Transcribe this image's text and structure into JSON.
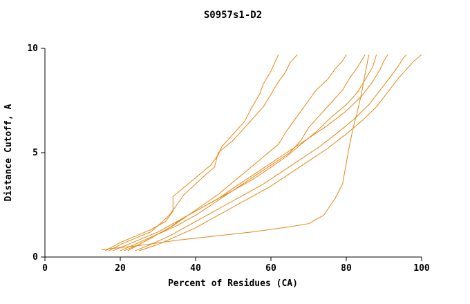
{
  "chart_data": {
    "type": "line",
    "title": "S0957s1-D2",
    "xlabel": "Percent of Residues (CA)",
    "ylabel": "Distance Cutoff, A",
    "xlim": [
      0,
      100
    ],
    "ylim": [
      0,
      10
    ],
    "xticks": [
      0,
      20,
      40,
      60,
      80,
      100
    ],
    "yticks": [
      0,
      5,
      10
    ],
    "grid": false,
    "legend": "none",
    "line_color": "#e68613",
    "axis_color": "#000000",
    "series": [
      {
        "points": [
          [
            16,
            0.3
          ],
          [
            18,
            0.5
          ],
          [
            20,
            0.7
          ],
          [
            24,
            1.0
          ],
          [
            28,
            1.3
          ],
          [
            32,
            1.7
          ],
          [
            34,
            2.2
          ],
          [
            34,
            2.9
          ],
          [
            36,
            3.2
          ],
          [
            40,
            3.8
          ],
          [
            44,
            4.4
          ],
          [
            46,
            4.9
          ],
          [
            47,
            5.3
          ],
          [
            50,
            5.9
          ],
          [
            53,
            6.5
          ],
          [
            55,
            7.2
          ],
          [
            57,
            7.8
          ],
          [
            58,
            8.3
          ],
          [
            60,
            8.9
          ],
          [
            61,
            9.3
          ],
          [
            62,
            9.7
          ]
        ]
      },
      {
        "points": [
          [
            17,
            0.3
          ],
          [
            20,
            0.6
          ],
          [
            24,
            0.9
          ],
          [
            28,
            1.2
          ],
          [
            30,
            1.5
          ],
          [
            33,
            2.0
          ],
          [
            35,
            2.5
          ],
          [
            37,
            3.0
          ],
          [
            40,
            3.5
          ],
          [
            43,
            4.0
          ],
          [
            45,
            4.3
          ],
          [
            46,
            5.0
          ],
          [
            48,
            5.3
          ],
          [
            50,
            5.6
          ],
          [
            52,
            6.0
          ],
          [
            55,
            6.6
          ],
          [
            58,
            7.2
          ],
          [
            60,
            7.8
          ],
          [
            62,
            8.4
          ],
          [
            64,
            8.9
          ],
          [
            65,
            9.3
          ],
          [
            67,
            9.7
          ]
        ]
      },
      {
        "points": [
          [
            18,
            0.3
          ],
          [
            22,
            0.6
          ],
          [
            26,
            0.9
          ],
          [
            30,
            1.2
          ],
          [
            34,
            1.6
          ],
          [
            38,
            2.0
          ],
          [
            42,
            2.5
          ],
          [
            46,
            3.0
          ],
          [
            50,
            3.6
          ],
          [
            54,
            4.2
          ],
          [
            58,
            4.8
          ],
          [
            62,
            5.4
          ],
          [
            64,
            6.0
          ],
          [
            66,
            6.5
          ],
          [
            68,
            7.0
          ],
          [
            70,
            7.5
          ],
          [
            72,
            8.0
          ],
          [
            75,
            8.5
          ],
          [
            77,
            9.0
          ],
          [
            79,
            9.4
          ],
          [
            80,
            9.7
          ]
        ]
      },
      {
        "points": [
          [
            20,
            0.3
          ],
          [
            25,
            0.7
          ],
          [
            30,
            1.1
          ],
          [
            35,
            1.5
          ],
          [
            40,
            2.0
          ],
          [
            45,
            2.6
          ],
          [
            50,
            3.2
          ],
          [
            55,
            3.8
          ],
          [
            60,
            4.4
          ],
          [
            65,
            5.0
          ],
          [
            68,
            5.6
          ],
          [
            70,
            6.2
          ],
          [
            73,
            6.8
          ],
          [
            76,
            7.4
          ],
          [
            79,
            8.0
          ],
          [
            81,
            8.6
          ],
          [
            83,
            9.1
          ],
          [
            84,
            9.4
          ],
          [
            85,
            9.7
          ]
        ]
      },
      {
        "points": [
          [
            15,
            0.35
          ],
          [
            25,
            0.55
          ],
          [
            35,
            0.8
          ],
          [
            45,
            1.0
          ],
          [
            55,
            1.2
          ],
          [
            65,
            1.45
          ],
          [
            70,
            1.6
          ],
          [
            74,
            2.0
          ],
          [
            77,
            2.8
          ],
          [
            79,
            3.5
          ],
          [
            80,
            4.5
          ],
          [
            81,
            5.5
          ],
          [
            82,
            6.3
          ],
          [
            83,
            7.0
          ],
          [
            84,
            7.8
          ],
          [
            85,
            8.8
          ],
          [
            86,
            9.7
          ]
        ]
      },
      {
        "points": [
          [
            21,
            0.3
          ],
          [
            25,
            0.6
          ],
          [
            29,
            1.0
          ],
          [
            33,
            1.4
          ],
          [
            37,
            1.9
          ],
          [
            41,
            2.3
          ],
          [
            45,
            2.7
          ],
          [
            50,
            3.2
          ],
          [
            55,
            3.7
          ],
          [
            60,
            4.3
          ],
          [
            64,
            4.8
          ],
          [
            68,
            5.4
          ],
          [
            72,
            6.0
          ],
          [
            76,
            6.7
          ],
          [
            80,
            7.3
          ],
          [
            83,
            7.9
          ],
          [
            85,
            8.5
          ],
          [
            87,
            9.1
          ],
          [
            88,
            9.7
          ]
        ]
      },
      {
        "points": [
          [
            22,
            0.3
          ],
          [
            26,
            0.7
          ],
          [
            30,
            1.1
          ],
          [
            34,
            1.5
          ],
          [
            38,
            2.0
          ],
          [
            42,
            2.4
          ],
          [
            46,
            2.8
          ],
          [
            50,
            3.3
          ],
          [
            55,
            3.9
          ],
          [
            60,
            4.5
          ],
          [
            65,
            5.1
          ],
          [
            70,
            5.7
          ],
          [
            75,
            6.3
          ],
          [
            80,
            7.0
          ],
          [
            84,
            7.7
          ],
          [
            87,
            8.4
          ],
          [
            89,
            9.0
          ],
          [
            90,
            9.4
          ],
          [
            91,
            9.7
          ]
        ]
      },
      {
        "points": [
          [
            24,
            0.3
          ],
          [
            28,
            0.6
          ],
          [
            33,
            1.0
          ],
          [
            38,
            1.5
          ],
          [
            43,
            2.0
          ],
          [
            48,
            2.5
          ],
          [
            53,
            3.0
          ],
          [
            58,
            3.5
          ],
          [
            63,
            4.1
          ],
          [
            68,
            4.7
          ],
          [
            73,
            5.3
          ],
          [
            78,
            6.0
          ],
          [
            82,
            6.6
          ],
          [
            86,
            7.3
          ],
          [
            89,
            8.0
          ],
          [
            92,
            8.7
          ],
          [
            94,
            9.2
          ],
          [
            95,
            9.5
          ],
          [
            96,
            9.7
          ]
        ]
      },
      {
        "points": [
          [
            25,
            0.3
          ],
          [
            30,
            0.6
          ],
          [
            35,
            1.0
          ],
          [
            40,
            1.4
          ],
          [
            45,
            1.9
          ],
          [
            50,
            2.4
          ],
          [
            55,
            2.9
          ],
          [
            60,
            3.4
          ],
          [
            65,
            4.0
          ],
          [
            70,
            4.6
          ],
          [
            75,
            5.2
          ],
          [
            80,
            5.9
          ],
          [
            84,
            6.5
          ],
          [
            88,
            7.2
          ],
          [
            91,
            7.9
          ],
          [
            94,
            8.6
          ],
          [
            96,
            9.0
          ],
          [
            98,
            9.4
          ],
          [
            100,
            9.7
          ]
        ]
      }
    ]
  }
}
